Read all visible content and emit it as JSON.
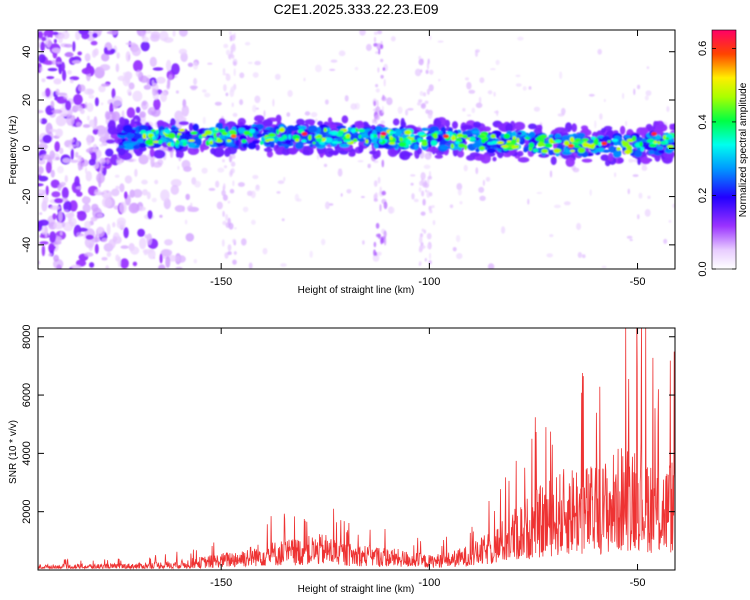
{
  "title": "C2E1.2025.333.22.23.E09",
  "colors": {
    "snr_line": "#ee3333",
    "frame": "#000000",
    "background": "#ffffff"
  },
  "chart_data": [
    {
      "id": "spectrogram",
      "type": "heatmap",
      "xlabel": "Height of straight line (km)",
      "ylabel": "Frequency (Hz)",
      "xlim": [
        -194,
        -41
      ],
      "ylim": [
        -50,
        49
      ],
      "x_ticks": [
        -150,
        -100,
        -50
      ],
      "x_tick_labels": [
        "-150",
        "-100",
        "-50"
      ],
      "y_ticks": [
        -40,
        -20,
        0,
        20,
        40
      ],
      "y_tick_labels": [
        "-40",
        "-20",
        "0",
        "20",
        "40"
      ],
      "colorbar": {
        "label": "Normalized spectral amplitude",
        "range": [
          0.0,
          0.65
        ],
        "ticks": [
          0.0,
          0.2,
          0.4,
          0.6
        ],
        "tick_labels": [
          "0.0",
          "0.2",
          "0.4",
          "0.6"
        ],
        "colormap": "rainbow (white-violet-blue-cyan-green-yellow-red-magenta)"
      },
      "features": {
        "signal_band_center_hz": [
          [
            -175,
            4
          ],
          [
            -150,
            5
          ],
          [
            -125,
            5
          ],
          [
            -100,
            4
          ],
          [
            -75,
            2
          ],
          [
            -55,
            1
          ],
          [
            -41,
            3
          ]
        ],
        "signal_band_halfwidth_hz": 4,
        "signal_start_km": -177,
        "noise_region_km": [
          -194,
          -160
        ],
        "peak_amplitude": 0.65
      }
    },
    {
      "id": "snr",
      "type": "line",
      "xlabel": "Height of straight line (km)",
      "ylabel": "SNR (10 * v/v)",
      "xlim": [
        -194,
        -41
      ],
      "ylim": [
        0,
        8300
      ],
      "x_ticks": [
        -150,
        -100,
        -50
      ],
      "x_tick_labels": [
        "-150",
        "-100",
        "-50"
      ],
      "y_ticks": [
        2000,
        4000,
        6000,
        8000
      ],
      "y_tick_labels": [
        "2000",
        "4000",
        "6000",
        "8000"
      ],
      "envelope_km": [
        -194,
        -180,
        -170,
        -160,
        -150,
        -140,
        -130,
        -125,
        -120,
        -110,
        -100,
        -95,
        -90,
        -85,
        -80,
        -75,
        -70,
        -65,
        -60,
        -55,
        -50,
        -45,
        -41
      ],
      "envelope_snr": [
        180,
        200,
        230,
        320,
        550,
        900,
        1100,
        1200,
        900,
        750,
        500,
        600,
        850,
        1300,
        2000,
        2600,
        3100,
        3600,
        3400,
        4000,
        4600,
        3400,
        3800
      ],
      "peaks": [
        {
          "x": -130,
          "y": 1750
        },
        {
          "x": -123,
          "y": 2100
        },
        {
          "x": -72,
          "y": 4900
        },
        {
          "x": -63,
          "y": 6650
        },
        {
          "x": -48,
          "y": 8300
        },
        {
          "x": -45,
          "y": 6200
        }
      ]
    }
  ]
}
